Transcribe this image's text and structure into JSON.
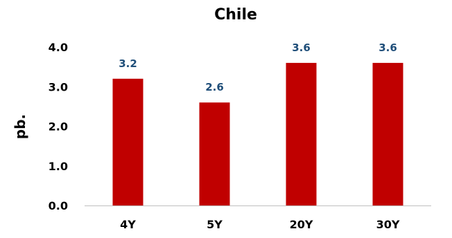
{
  "chart_data": {
    "type": "bar",
    "title": "Chile",
    "xlabel": "",
    "ylabel": "pb.",
    "categories": [
      "4Y",
      "5Y",
      "20Y",
      "30Y"
    ],
    "values": [
      3.2,
      2.6,
      3.6,
      3.6
    ],
    "data_labels": [
      "3.2",
      "2.6",
      "3.6",
      "3.6"
    ],
    "ylim": [
      0,
      4
    ],
    "yticks": [
      "0.0",
      "1.0",
      "2.0",
      "3.0",
      "4.0"
    ],
    "grid": false,
    "legend": "none",
    "colors": {
      "bar": "#C00000",
      "data_label": "#1F4E79",
      "axis": "#BFBFBF"
    }
  }
}
